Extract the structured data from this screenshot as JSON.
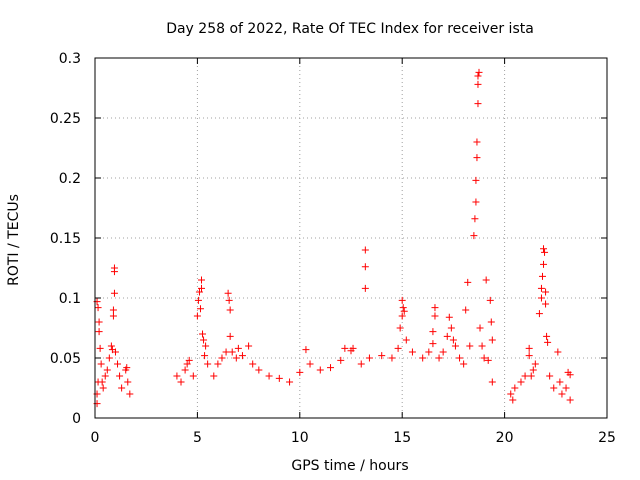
{
  "chart_data": {
    "type": "scatter",
    "title": "Day 258 of 2022, Rate Of TEC Index for receiver ista",
    "xlabel": "GPS time / hours",
    "ylabel": "ROTI / TECUs",
    "xlim": [
      0,
      25
    ],
    "ylim": [
      0,
      0.3
    ],
    "xticks": [
      0,
      5,
      10,
      15,
      20,
      25
    ],
    "yticks": [
      0,
      0.05,
      0.1,
      0.15,
      0.2,
      0.25,
      0.3
    ],
    "xtick_labels": [
      "0",
      "5",
      "10",
      "15",
      "20",
      "25"
    ],
    "ytick_labels": [
      "0",
      "0.05",
      "0.1",
      "0.15",
      "0.2",
      "0.25",
      "0.3"
    ],
    "grid": true,
    "marker": "+",
    "color": "#ff0000",
    "series": [
      {
        "name": "ROTI",
        "points": [
          [
            0.1,
            0.012
          ],
          [
            0.1,
            0.02
          ],
          [
            0.15,
            0.03
          ],
          [
            0.1,
            0.097
          ],
          [
            0.15,
            0.092
          ],
          [
            0.2,
            0.08
          ],
          [
            0.2,
            0.072
          ],
          [
            0.25,
            0.058
          ],
          [
            0.3,
            0.045
          ],
          [
            0.35,
            0.03
          ],
          [
            0.4,
            0.025
          ],
          [
            0.5,
            0.035
          ],
          [
            0.6,
            0.04
          ],
          [
            0.7,
            0.05
          ],
          [
            0.8,
            0.06
          ],
          [
            0.85,
            0.057
          ],
          [
            0.9,
            0.09
          ],
          [
            0.9,
            0.085
          ],
          [
            0.95,
            0.104
          ],
          [
            0.95,
            0.125
          ],
          [
            0.95,
            0.122
          ],
          [
            1.0,
            0.055
          ],
          [
            1.1,
            0.045
          ],
          [
            1.2,
            0.035
          ],
          [
            1.3,
            0.025
          ],
          [
            1.5,
            0.04
          ],
          [
            1.55,
            0.042
          ],
          [
            1.6,
            0.03
          ],
          [
            1.7,
            0.02
          ],
          [
            4.0,
            0.035
          ],
          [
            4.2,
            0.03
          ],
          [
            4.4,
            0.04
          ],
          [
            4.5,
            0.045
          ],
          [
            4.6,
            0.048
          ],
          [
            4.8,
            0.035
          ],
          [
            5.0,
            0.085
          ],
          [
            5.05,
            0.098
          ],
          [
            5.1,
            0.105
          ],
          [
            5.15,
            0.091
          ],
          [
            5.2,
            0.115
          ],
          [
            5.2,
            0.108
          ],
          [
            5.25,
            0.07
          ],
          [
            5.3,
            0.065
          ],
          [
            5.35,
            0.052
          ],
          [
            5.4,
            0.06
          ],
          [
            5.5,
            0.045
          ],
          [
            5.8,
            0.035
          ],
          [
            6.0,
            0.045
          ],
          [
            6.2,
            0.05
          ],
          [
            6.4,
            0.055
          ],
          [
            6.5,
            0.104
          ],
          [
            6.55,
            0.098
          ],
          [
            6.6,
            0.09
          ],
          [
            6.6,
            0.068
          ],
          [
            6.7,
            0.055
          ],
          [
            6.9,
            0.05
          ],
          [
            7.0,
            0.058
          ],
          [
            7.2,
            0.052
          ],
          [
            7.5,
            0.06
          ],
          [
            7.7,
            0.045
          ],
          [
            8.0,
            0.04
          ],
          [
            8.5,
            0.035
          ],
          [
            9.0,
            0.033
          ],
          [
            9.5,
            0.03
          ],
          [
            10.0,
            0.038
          ],
          [
            10.3,
            0.057
          ],
          [
            10.5,
            0.045
          ],
          [
            11.0,
            0.04
          ],
          [
            11.5,
            0.042
          ],
          [
            12.0,
            0.048
          ],
          [
            12.2,
            0.058
          ],
          [
            12.5,
            0.056
          ],
          [
            12.6,
            0.058
          ],
          [
            13.0,
            0.045
          ],
          [
            13.2,
            0.14
          ],
          [
            13.2,
            0.126
          ],
          [
            13.2,
            0.108
          ],
          [
            13.4,
            0.05
          ],
          [
            14.0,
            0.052
          ],
          [
            14.5,
            0.05
          ],
          [
            14.8,
            0.058
          ],
          [
            14.9,
            0.075
          ],
          [
            15.0,
            0.085
          ],
          [
            15.0,
            0.098
          ],
          [
            15.05,
            0.092
          ],
          [
            15.1,
            0.089
          ],
          [
            15.2,
            0.065
          ],
          [
            15.5,
            0.055
          ],
          [
            16.0,
            0.05
          ],
          [
            16.3,
            0.055
          ],
          [
            16.5,
            0.072
          ],
          [
            16.5,
            0.062
          ],
          [
            16.6,
            0.092
          ],
          [
            16.6,
            0.085
          ],
          [
            16.8,
            0.05
          ],
          [
            17.0,
            0.055
          ],
          [
            17.2,
            0.068
          ],
          [
            17.3,
            0.084
          ],
          [
            17.4,
            0.075
          ],
          [
            17.5,
            0.065
          ],
          [
            17.6,
            0.06
          ],
          [
            17.8,
            0.05
          ],
          [
            18.0,
            0.045
          ],
          [
            18.1,
            0.09
          ],
          [
            18.2,
            0.113
          ],
          [
            18.3,
            0.06
          ],
          [
            18.5,
            0.152
          ],
          [
            18.55,
            0.166
          ],
          [
            18.6,
            0.18
          ],
          [
            18.6,
            0.198
          ],
          [
            18.65,
            0.217
          ],
          [
            18.65,
            0.23
          ],
          [
            18.7,
            0.262
          ],
          [
            18.7,
            0.278
          ],
          [
            18.7,
            0.285
          ],
          [
            18.75,
            0.288
          ],
          [
            18.8,
            0.075
          ],
          [
            18.9,
            0.06
          ],
          [
            19.0,
            0.05
          ],
          [
            19.1,
            0.115
          ],
          [
            19.2,
            0.048
          ],
          [
            19.3,
            0.098
          ],
          [
            19.35,
            0.08
          ],
          [
            19.4,
            0.065
          ],
          [
            19.4,
            0.03
          ],
          [
            20.3,
            0.02
          ],
          [
            20.4,
            0.015
          ],
          [
            20.5,
            0.025
          ],
          [
            20.8,
            0.03
          ],
          [
            21.0,
            0.035
          ],
          [
            21.2,
            0.058
          ],
          [
            21.2,
            0.052
          ],
          [
            21.3,
            0.035
          ],
          [
            21.4,
            0.04
          ],
          [
            21.5,
            0.045
          ],
          [
            21.7,
            0.087
          ],
          [
            21.8,
            0.1
          ],
          [
            21.8,
            0.108
          ],
          [
            21.85,
            0.118
          ],
          [
            21.9,
            0.128
          ],
          [
            21.9,
            0.141
          ],
          [
            21.95,
            0.138
          ],
          [
            22.0,
            0.105
          ],
          [
            22.0,
            0.095
          ],
          [
            22.05,
            0.068
          ],
          [
            22.1,
            0.063
          ],
          [
            22.2,
            0.035
          ],
          [
            22.4,
            0.025
          ],
          [
            22.6,
            0.055
          ],
          [
            22.7,
            0.03
          ],
          [
            22.8,
            0.02
          ],
          [
            23.0,
            0.025
          ],
          [
            23.1,
            0.038
          ],
          [
            23.2,
            0.036
          ],
          [
            23.2,
            0.015
          ]
        ]
      }
    ]
  }
}
